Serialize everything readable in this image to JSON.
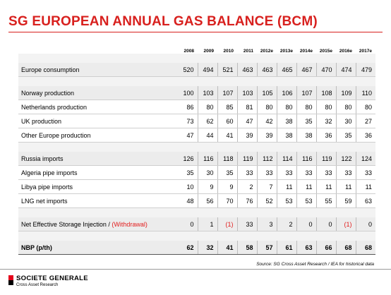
{
  "title": "SG EUROPEAN ANNUAL GAS BALANCE (BCM)",
  "table": {
    "years": [
      "2008",
      "2009",
      "2010",
      "2011",
      "2012e",
      "2013e",
      "2014e",
      "2015e",
      "2016e",
      "2017e"
    ],
    "rows": [
      {
        "label": "Europe consumption",
        "values": [
          "520",
          "494",
          "521",
          "463",
          "463",
          "465",
          "467",
          "470",
          "474",
          "479"
        ]
      },
      {
        "label": "Norway production",
        "values": [
          "100",
          "103",
          "107",
          "103",
          "105",
          "106",
          "107",
          "108",
          "109",
          "110"
        ]
      },
      {
        "label": "Netherlands production",
        "values": [
          "86",
          "80",
          "85",
          "81",
          "80",
          "80",
          "80",
          "80",
          "80",
          "80"
        ]
      },
      {
        "label": "UK production",
        "values": [
          "73",
          "62",
          "60",
          "47",
          "42",
          "38",
          "35",
          "32",
          "30",
          "27"
        ]
      },
      {
        "label": "Other Europe production",
        "values": [
          "47",
          "44",
          "41",
          "39",
          "39",
          "38",
          "38",
          "36",
          "35",
          "36"
        ]
      },
      {
        "label": "Russia imports",
        "values": [
          "126",
          "116",
          "118",
          "119",
          "112",
          "114",
          "116",
          "119",
          "122",
          "124"
        ]
      },
      {
        "label": "Algeria pipe imports",
        "values": [
          "35",
          "30",
          "35",
          "33",
          "33",
          "33",
          "33",
          "33",
          "33",
          "33"
        ]
      },
      {
        "label": "Libya pipe imports",
        "values": [
          "10",
          "9",
          "9",
          "2",
          "7",
          "11",
          "11",
          "11",
          "11",
          "11"
        ]
      },
      {
        "label": "LNG net imports",
        "values": [
          "48",
          "56",
          "70",
          "76",
          "52",
          "53",
          "53",
          "55",
          "59",
          "63"
        ]
      },
      {
        "label": "Net Effective Storage Injection / ",
        "label_red": "(Withdrawal)",
        "values": [
          "0",
          "1",
          "(1)",
          "33",
          "3",
          "2",
          "0",
          "0",
          "(1)",
          "0"
        ]
      },
      {
        "label": "NBP (p/th)",
        "values": [
          "62",
          "32",
          "41",
          "58",
          "57",
          "61",
          "63",
          "66",
          "68",
          "68"
        ]
      }
    ]
  },
  "source": "Source: SG Cross Asset Research / IEA for historical data",
  "footer": {
    "brand": "SOCIETE GENERALE",
    "sub": "Cross Asset Research",
    "colors": {
      "brand_red": "#e4001b",
      "title_red": "#d8201e"
    }
  }
}
